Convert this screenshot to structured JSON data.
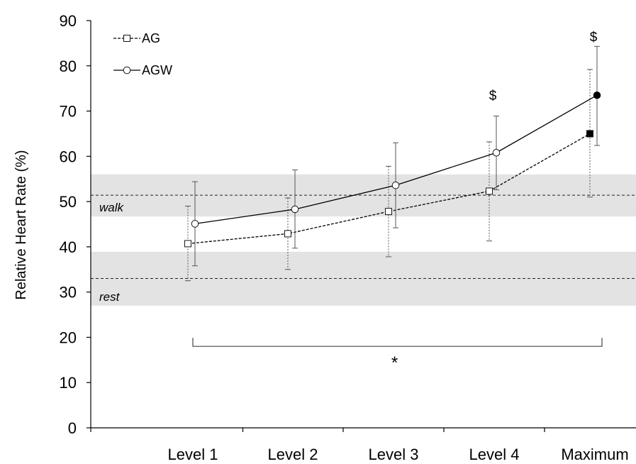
{
  "chart_data": {
    "type": "line",
    "ylabel": "Relative Heart Rate (%)",
    "xlabel": "",
    "ylim": [
      0,
      90
    ],
    "yticks": [
      0,
      10,
      20,
      30,
      40,
      50,
      60,
      70,
      80,
      90
    ],
    "categories": [
      "Level 1",
      "Level 2",
      "Level 3",
      "Level 4",
      "Maximum"
    ],
    "grid": false,
    "legend_position": "top-left",
    "series": [
      {
        "name": "AG",
        "style": "dashed",
        "marker": "square",
        "values": [
          40.7,
          42.9,
          47.8,
          52.3,
          65.0
        ],
        "err_low": [
          32.5,
          35.0,
          37.8,
          41.3,
          51.0
        ],
        "err_high": [
          49.0,
          50.8,
          57.8,
          63.2,
          79.2
        ],
        "filled_marker": [
          false,
          false,
          false,
          false,
          true
        ]
      },
      {
        "name": "AGW",
        "style": "solid",
        "marker": "circle",
        "values": [
          45.1,
          48.3,
          53.6,
          60.8,
          73.5
        ],
        "err_low": [
          35.8,
          39.7,
          44.2,
          52.6,
          62.4
        ],
        "err_high": [
          54.4,
          57.0,
          63.0,
          68.9,
          84.3
        ],
        "filled_marker": [
          false,
          false,
          false,
          false,
          true
        ]
      }
    ],
    "bands": [
      {
        "label": "walk",
        "lower": 46.7,
        "upper": 56.0,
        "line": 51.4
      },
      {
        "label": "rest",
        "lower": 27.0,
        "upper": 38.9,
        "line": 33.0
      }
    ],
    "annotations": [
      {
        "text": "$",
        "category": "Level 4",
        "value": 73.5
      },
      {
        "text": "$",
        "category": "Maximum",
        "value": 86.5
      }
    ],
    "bracket": {
      "from": "Level 1",
      "to": "Maximum",
      "value": 18.0,
      "label": "*"
    }
  }
}
